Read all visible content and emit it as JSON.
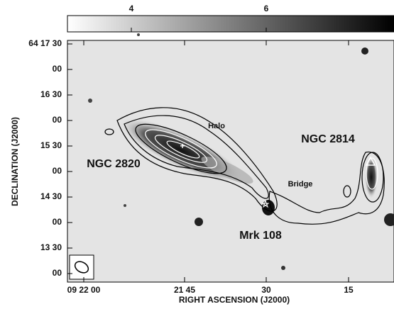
{
  "colorbar": {
    "ticks": [
      "4",
      "6"
    ]
  },
  "axes": {
    "x_label": "RIGHT ASCENSION (J2000)",
    "y_label": "DECLINATION (J2000)",
    "x_ticks": [
      "09 22 00",
      "21 45",
      "30",
      "15"
    ],
    "y_ticks": [
      "64 17 30",
      "00",
      "16 30",
      "00",
      "15 30",
      "00",
      "14 30",
      "00",
      "13 30",
      "00"
    ]
  },
  "annotations": {
    "halo": "Halo",
    "ngc2814": "NGC 2814",
    "ngc2820": "NGC 2820",
    "bridge": "Bridge",
    "mrk108": "Mrk 108"
  }
}
